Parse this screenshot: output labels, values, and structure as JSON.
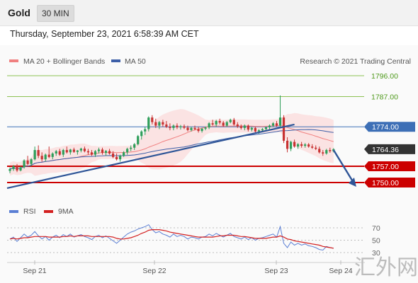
{
  "header": {
    "instrument": "Gold",
    "timeframe": "30 MIN",
    "timestamp": "Thursday, September 23, 2021 6:58:39 AM CET"
  },
  "legend": {
    "ma20_label": "MA 20 + Bollinger Bands",
    "ma50_label": "MA 50",
    "credit": "Research © 2021 Trading Central"
  },
  "rsi_legend": {
    "rsi_label": "RSI",
    "ma_label": "9MA"
  },
  "watermark": "汇外网",
  "colors": {
    "green_level": "#8cc152",
    "blue_level": "#3d6fb6",
    "red_level": "#cc0000",
    "current_price": "#333333",
    "ma20": "#f08080",
    "ma50": "#3d5fa8",
    "band_fill": "#fbe0e0",
    "candle_up": "#2e9e5a",
    "candle_down": "#c83232",
    "trend_line": "#2f5597",
    "rsi_line": "#5b7fd4",
    "rsi_ma": "#d32020"
  },
  "chart_data": [
    {
      "type": "candlestick",
      "x_ticks": [
        "Sep 21",
        "Sep 22",
        "Sep 23",
        "Sep 24"
      ],
      "ylim": [
        1745,
        1800
      ],
      "levels": [
        {
          "value": 1796.0,
          "label": "1796.00",
          "kind": "resistance"
        },
        {
          "value": 1787.0,
          "label": "1787.00",
          "kind": "resistance"
        },
        {
          "value": 1774.0,
          "label": "1774.00",
          "kind": "pivot"
        },
        {
          "value": 1764.36,
          "label": "1764.36",
          "kind": "current"
        },
        {
          "value": 1757.0,
          "label": "1757.00",
          "kind": "support"
        },
        {
          "value": 1750.0,
          "label": "1750.00",
          "kind": "support"
        }
      ],
      "candles": [
        [
          1755.0,
          1756.5,
          1754.0,
          1755.8
        ],
        [
          1755.8,
          1757.5,
          1755.0,
          1757.0
        ],
        [
          1757.0,
          1758.0,
          1754.5,
          1755.2
        ],
        [
          1755.2,
          1757.0,
          1754.8,
          1756.6
        ],
        [
          1756.6,
          1760.0,
          1756.0,
          1759.5
        ],
        [
          1759.5,
          1761.5,
          1757.5,
          1758.0
        ],
        [
          1758.0,
          1760.5,
          1757.0,
          1760.0
        ],
        [
          1760.0,
          1765.5,
          1759.5,
          1764.0
        ],
        [
          1764.0,
          1766.0,
          1760.5,
          1761.5
        ],
        [
          1761.5,
          1763.0,
          1759.0,
          1760.0
        ],
        [
          1760.0,
          1762.5,
          1759.0,
          1762.0
        ],
        [
          1762.0,
          1765.5,
          1760.5,
          1761.0
        ],
        [
          1761.0,
          1763.0,
          1760.0,
          1762.5
        ],
        [
          1762.5,
          1764.0,
          1761.5,
          1763.5
        ],
        [
          1763.5,
          1764.5,
          1761.5,
          1762.0
        ],
        [
          1762.0,
          1764.5,
          1761.0,
          1764.0
        ],
        [
          1764.0,
          1765.5,
          1762.5,
          1763.0
        ],
        [
          1763.0,
          1764.5,
          1762.0,
          1764.2
        ],
        [
          1764.2,
          1765.0,
          1762.8,
          1763.2
        ],
        [
          1763.2,
          1764.0,
          1762.0,
          1763.8
        ],
        [
          1763.8,
          1765.0,
          1763.0,
          1764.6
        ],
        [
          1764.6,
          1765.5,
          1763.0,
          1763.5
        ],
        [
          1763.5,
          1764.5,
          1762.0,
          1763.0
        ],
        [
          1763.0,
          1764.0,
          1761.5,
          1762.0
        ],
        [
          1762.0,
          1764.0,
          1761.0,
          1763.5
        ],
        [
          1763.5,
          1765.0,
          1762.5,
          1764.2
        ],
        [
          1764.2,
          1765.0,
          1762.0,
          1762.8
        ],
        [
          1762.8,
          1764.0,
          1761.5,
          1763.6
        ],
        [
          1763.6,
          1764.5,
          1762.0,
          1762.5
        ],
        [
          1762.5,
          1763.5,
          1760.5,
          1761.0
        ],
        [
          1761.0,
          1762.5,
          1759.5,
          1760.0
        ],
        [
          1760.0,
          1762.0,
          1759.0,
          1761.5
        ],
        [
          1761.5,
          1763.5,
          1761.0,
          1763.0
        ],
        [
          1763.0,
          1765.0,
          1762.0,
          1764.5
        ],
        [
          1764.5,
          1766.0,
          1763.5,
          1765.0
        ],
        [
          1765.0,
          1767.0,
          1764.0,
          1766.5
        ],
        [
          1766.5,
          1770.5,
          1766.0,
          1770.0
        ],
        [
          1770.0,
          1772.5,
          1768.5,
          1772.0
        ],
        [
          1772.0,
          1774.0,
          1770.5,
          1773.0
        ],
        [
          1773.0,
          1778.5,
          1772.0,
          1778.0
        ],
        [
          1778.0,
          1779.0,
          1775.0,
          1776.0
        ],
        [
          1776.0,
          1777.5,
          1773.5,
          1774.5
        ],
        [
          1774.5,
          1776.5,
          1773.0,
          1776.0
        ],
        [
          1776.0,
          1777.0,
          1774.0,
          1775.0
        ],
        [
          1775.0,
          1776.5,
          1773.5,
          1774.0
        ],
        [
          1774.0,
          1775.5,
          1772.5,
          1773.5
        ],
        [
          1773.5,
          1775.0,
          1772.5,
          1774.5
        ],
        [
          1774.5,
          1775.5,
          1773.0,
          1773.8
        ],
        [
          1773.8,
          1774.8,
          1772.8,
          1774.2
        ],
        [
          1774.2,
          1775.0,
          1773.0,
          1773.6
        ],
        [
          1773.6,
          1774.5,
          1772.0,
          1772.6
        ],
        [
          1772.6,
          1774.0,
          1772.0,
          1773.5
        ],
        [
          1773.5,
          1774.5,
          1772.5,
          1773.0
        ],
        [
          1773.0,
          1774.0,
          1771.5,
          1772.2
        ],
        [
          1772.2,
          1773.5,
          1771.5,
          1773.2
        ],
        [
          1773.2,
          1774.0,
          1772.5,
          1773.7
        ],
        [
          1773.7,
          1776.0,
          1773.0,
          1775.5
        ],
        [
          1775.5,
          1777.0,
          1774.5,
          1775.0
        ],
        [
          1775.0,
          1777.0,
          1774.0,
          1776.5
        ],
        [
          1776.5,
          1777.5,
          1775.0,
          1775.8
        ],
        [
          1775.8,
          1776.5,
          1774.0,
          1774.5
        ],
        [
          1774.5,
          1776.5,
          1774.0,
          1776.0
        ],
        [
          1776.0,
          1777.5,
          1775.5,
          1777.0
        ],
        [
          1777.0,
          1777.8,
          1774.5,
          1775.0
        ],
        [
          1775.0,
          1776.0,
          1773.5,
          1774.2
        ],
        [
          1774.2,
          1775.0,
          1772.8,
          1773.5
        ],
        [
          1773.5,
          1775.0,
          1772.5,
          1774.5
        ],
        [
          1774.5,
          1775.0,
          1772.0,
          1772.8
        ],
        [
          1772.8,
          1774.0,
          1772.0,
          1773.5
        ],
        [
          1773.5,
          1774.0,
          1771.5,
          1772.0
        ],
        [
          1772.0,
          1773.0,
          1771.0,
          1772.5
        ],
        [
          1772.5,
          1773.5,
          1772.0,
          1773.0
        ],
        [
          1773.0,
          1774.0,
          1772.5,
          1773.8
        ],
        [
          1773.8,
          1775.0,
          1773.0,
          1774.5
        ],
        [
          1774.5,
          1776.0,
          1774.0,
          1775.5
        ],
        [
          1775.5,
          1776.5,
          1774.0,
          1774.5
        ],
        [
          1774.5,
          1787.5,
          1774.0,
          1778.0
        ],
        [
          1778.0,
          1779.0,
          1767.0,
          1768.0
        ],
        [
          1768.0,
          1769.5,
          1763.0,
          1764.5
        ],
        [
          1764.5,
          1768.0,
          1763.5,
          1767.5
        ],
        [
          1767.5,
          1768.5,
          1765.0,
          1765.5
        ],
        [
          1765.5,
          1767.0,
          1764.5,
          1766.5
        ],
        [
          1766.5,
          1767.5,
          1765.0,
          1765.8
        ],
        [
          1765.8,
          1767.0,
          1765.0,
          1766.4
        ],
        [
          1766.4,
          1767.0,
          1765.0,
          1765.5
        ],
        [
          1765.5,
          1766.5,
          1764.5,
          1765.0
        ],
        [
          1765.0,
          1766.0,
          1764.0,
          1764.5
        ],
        [
          1764.5,
          1765.5,
          1762.5,
          1763.0
        ],
        [
          1763.0,
          1764.0,
          1761.5,
          1762.5
        ],
        [
          1762.5,
          1764.5,
          1762.0,
          1764.0
        ],
        [
          1764.0,
          1765.0,
          1762.8,
          1763.5
        ],
        [
          1763.5,
          1764.8,
          1763.0,
          1764.36
        ]
      ],
      "trend_line": {
        "from_index": 0,
        "from_price": 1748.5,
        "to_index": 80,
        "to_price": 1775.0
      },
      "forecast_arrow": {
        "from_index": 91,
        "from_price": 1764.0,
        "to_index": 97,
        "to_price": 1750.0
      }
    },
    {
      "type": "line",
      "name": "RSI",
      "y_ticks": [
        30,
        50,
        70
      ],
      "ylim": [
        20,
        80
      ],
      "rsi": [
        52,
        55,
        48,
        54,
        60,
        55,
        58,
        64,
        57,
        52,
        56,
        50,
        55,
        58,
        54,
        59,
        56,
        60,
        55,
        57,
        59,
        56,
        54,
        51,
        56,
        58,
        54,
        57,
        53,
        49,
        45,
        50,
        55,
        60,
        63,
        65,
        68,
        70,
        72,
        75,
        67,
        62,
        64,
        60,
        58,
        55,
        60,
        56,
        58,
        56,
        52,
        55,
        54,
        52,
        55,
        56,
        60,
        57,
        61,
        58,
        55,
        58,
        61,
        56,
        54,
        52,
        55,
        51,
        54,
        50,
        53,
        54,
        56,
        58,
        60,
        55,
        72,
        45,
        38,
        47,
        42,
        45,
        42,
        44,
        41,
        40,
        38,
        35,
        34,
        40,
        38,
        37
      ],
      "ma9": [
        52,
        53,
        52,
        53,
        54,
        54,
        55,
        56,
        56,
        56,
        56,
        55,
        55,
        55,
        55,
        56,
        56,
        57,
        56,
        57,
        57,
        57,
        57,
        56,
        56,
        56,
        56,
        56,
        56,
        55,
        53,
        52,
        52,
        53,
        54,
        56,
        58,
        61,
        63,
        66,
        67,
        67,
        67,
        66,
        65,
        63,
        62,
        61,
        60,
        59,
        58,
        57,
        56,
        55,
        55,
        55,
        55,
        55,
        56,
        57,
        57,
        58,
        58,
        58,
        57,
        56,
        56,
        55,
        54,
        53,
        53,
        53,
        53,
        54,
        55,
        55,
        57,
        55,
        52,
        51,
        49,
        48,
        47,
        46,
        45,
        44,
        43,
        42,
        40,
        39,
        38,
        37
      ]
    }
  ]
}
